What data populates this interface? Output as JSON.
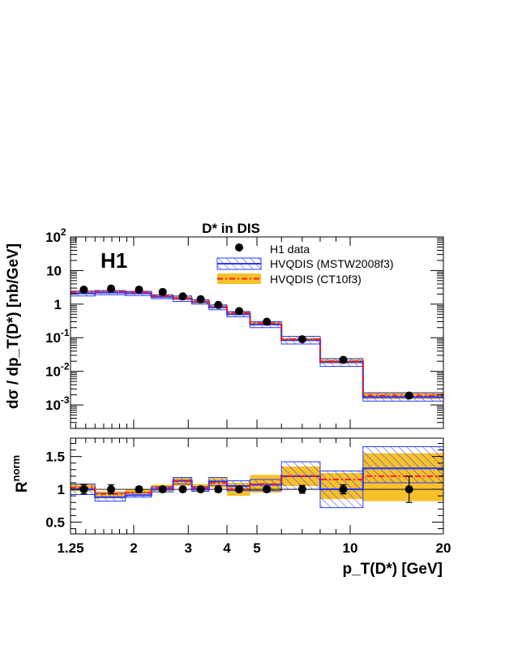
{
  "chart_data": [
    {
      "type": "histogram-step",
      "title": "D* in DIS",
      "watermark": "H1",
      "ylabel": "dσ / dp_T(D*) [nb/GeV]",
      "yscale": "log",
      "ylim": [
        0.0002,
        100
      ],
      "yticks": [
        {
          "v": 100,
          "m": "10",
          "e": "2"
        },
        {
          "v": 10,
          "m": "10",
          "e": ""
        },
        {
          "v": 1,
          "m": "1",
          "e": ""
        },
        {
          "v": 0.1,
          "m": "10",
          "e": "-1"
        },
        {
          "v": 0.01,
          "m": "10",
          "e": "-2"
        },
        {
          "v": 0.001,
          "m": "10",
          "e": "-3"
        }
      ],
      "xscale": "log",
      "xlim": [
        1.25,
        20
      ],
      "legend_position": "top-right",
      "legend": [
        "H1 data",
        "HVQDIS (MSTW2008f3)",
        "HVQDIS (CT10f3)"
      ],
      "bin_edges": [
        1.25,
        1.5,
        1.88,
        2.28,
        2.68,
        3.08,
        3.5,
        4.0,
        4.75,
        6.0,
        8.0,
        11.0,
        20.0
      ],
      "series": [
        {
          "name": "H1 data",
          "x": [
            1.38,
            1.69,
            2.08,
            2.48,
            2.88,
            3.29,
            3.75,
            4.38,
            5.38,
            7.0,
            9.5,
            15.5
          ],
          "y": [
            2.7,
            2.9,
            2.7,
            2.3,
            1.7,
            1.4,
            0.95,
            0.62,
            0.3,
            0.09,
            0.022,
            0.0019
          ]
        },
        {
          "name": "HVQDIS (MSTW2008f3)",
          "y": [
            2.1,
            2.2,
            2.1,
            1.65,
            1.45,
            1.15,
            0.8,
            0.5,
            0.25,
            0.085,
            0.019,
            0.0017
          ],
          "band_lo": [
            1.75,
            1.9,
            1.8,
            1.45,
            1.2,
            1.0,
            0.68,
            0.42,
            0.2,
            0.065,
            0.014,
            0.0013
          ],
          "band_hi": [
            2.45,
            2.55,
            2.4,
            1.9,
            1.75,
            1.35,
            0.95,
            0.6,
            0.3,
            0.11,
            0.024,
            0.0023
          ]
        },
        {
          "name": "HVQDIS (CT10f3)",
          "y": [
            2.3,
            2.35,
            2.25,
            1.75,
            1.5,
            1.2,
            0.85,
            0.55,
            0.27,
            0.09,
            0.02,
            0.0019
          ],
          "band_lo": [
            2.05,
            2.1,
            2.0,
            1.55,
            1.35,
            1.05,
            0.76,
            0.49,
            0.23,
            0.08,
            0.017,
            0.0015
          ],
          "band_hi": [
            2.55,
            2.6,
            2.5,
            1.95,
            1.7,
            1.35,
            0.95,
            0.62,
            0.31,
            0.1,
            0.023,
            0.0024
          ]
        }
      ]
    },
    {
      "type": "histogram-step",
      "ylabel": "R",
      "ylabel_sup": "norm",
      "ylim": [
        0.32,
        1.78
      ],
      "yticks": [
        {
          "v": 0.5,
          "label": "0.5"
        },
        {
          "v": 1,
          "label": "1"
        },
        {
          "v": 1.5,
          "label": "1.5"
        }
      ],
      "xlabel": "p_T(D*) [GeV]",
      "xscale": "log",
      "xlim": [
        1.25,
        20
      ],
      "xticks": [
        {
          "v": 1.25,
          "label": "1.25"
        },
        {
          "v": 2,
          "label": "2"
        },
        {
          "v": 3,
          "label": "3"
        },
        {
          "v": 4,
          "label": "4"
        },
        {
          "v": 5,
          "label": "5"
        },
        {
          "v": 10,
          "label": "10"
        },
        {
          "v": 20,
          "label": "20"
        }
      ],
      "bin_edges": [
        1.25,
        1.5,
        1.88,
        2.28,
        2.68,
        3.08,
        3.5,
        4.0,
        4.75,
        6.0,
        8.0,
        11.0,
        20.0
      ],
      "series": [
        {
          "name": "H1 data",
          "x": [
            1.38,
            1.69,
            2.08,
            2.48,
            2.88,
            3.29,
            3.75,
            4.38,
            5.38,
            7.0,
            9.5,
            15.5
          ],
          "y": [
            1.0,
            1.0,
            1.0,
            1.0,
            1.0,
            1.0,
            1.0,
            1.0,
            1.0,
            1.0,
            1.0,
            1.0
          ],
          "err": [
            0.07,
            0.07,
            0.04,
            0.04,
            0.03,
            0.03,
            0.04,
            0.04,
            0.04,
            0.06,
            0.07,
            0.2
          ]
        },
        {
          "name": "HVQDIS (MSTW2008f3)",
          "y": [
            1.0,
            0.88,
            0.91,
            1.0,
            1.13,
            1.0,
            1.12,
            1.05,
            1.07,
            1.2,
            1.0,
            1.32
          ],
          "band_lo": [
            0.92,
            0.82,
            0.88,
            0.96,
            1.08,
            0.97,
            1.06,
            0.98,
            0.98,
            1.0,
            0.72,
            1.1
          ],
          "band_hi": [
            1.08,
            0.94,
            0.95,
            1.04,
            1.18,
            1.04,
            1.18,
            1.13,
            1.15,
            1.42,
            1.28,
            1.65
          ]
        },
        {
          "name": "HVQDIS (CT10f3)",
          "y": [
            1.03,
            0.93,
            0.95,
            1.02,
            1.12,
            1.02,
            1.1,
            1.0,
            1.08,
            1.2,
            1.15,
            1.2
          ],
          "band_lo": [
            0.97,
            0.86,
            0.9,
            0.97,
            1.05,
            0.97,
            1.03,
            0.9,
            0.95,
            1.05,
            0.85,
            0.82
          ],
          "band_hi": [
            1.09,
            0.97,
            1.0,
            1.07,
            1.18,
            1.08,
            1.17,
            1.1,
            1.22,
            1.35,
            1.25,
            1.55
          ]
        }
      ]
    }
  ]
}
